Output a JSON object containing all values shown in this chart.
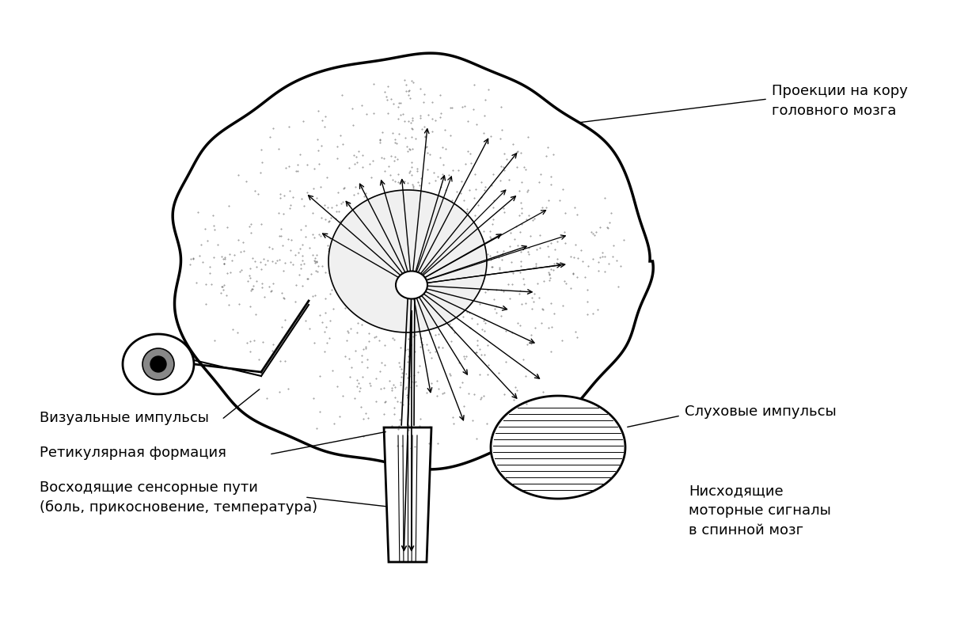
{
  "background_color": "#ffffff",
  "text_color": "#000000",
  "line_color": "#000000",
  "labels": {
    "top_right": [
      "Проекции на кору",
      "головного мозга"
    ],
    "right_mid": "Слуховые импульсы",
    "left_top": "Визуальные импульсы",
    "left_mid": "Ретикулярная формация",
    "left_bot": [
      "Восходящие сенсорные пути",
      "(боль, прикосновение, температура)"
    ],
    "right_bot": [
      "Нисходящие",
      "моторные сигналы",
      "в спинной мозг"
    ]
  },
  "figsize": [
    12.04,
    7.87
  ],
  "dpi": 100
}
